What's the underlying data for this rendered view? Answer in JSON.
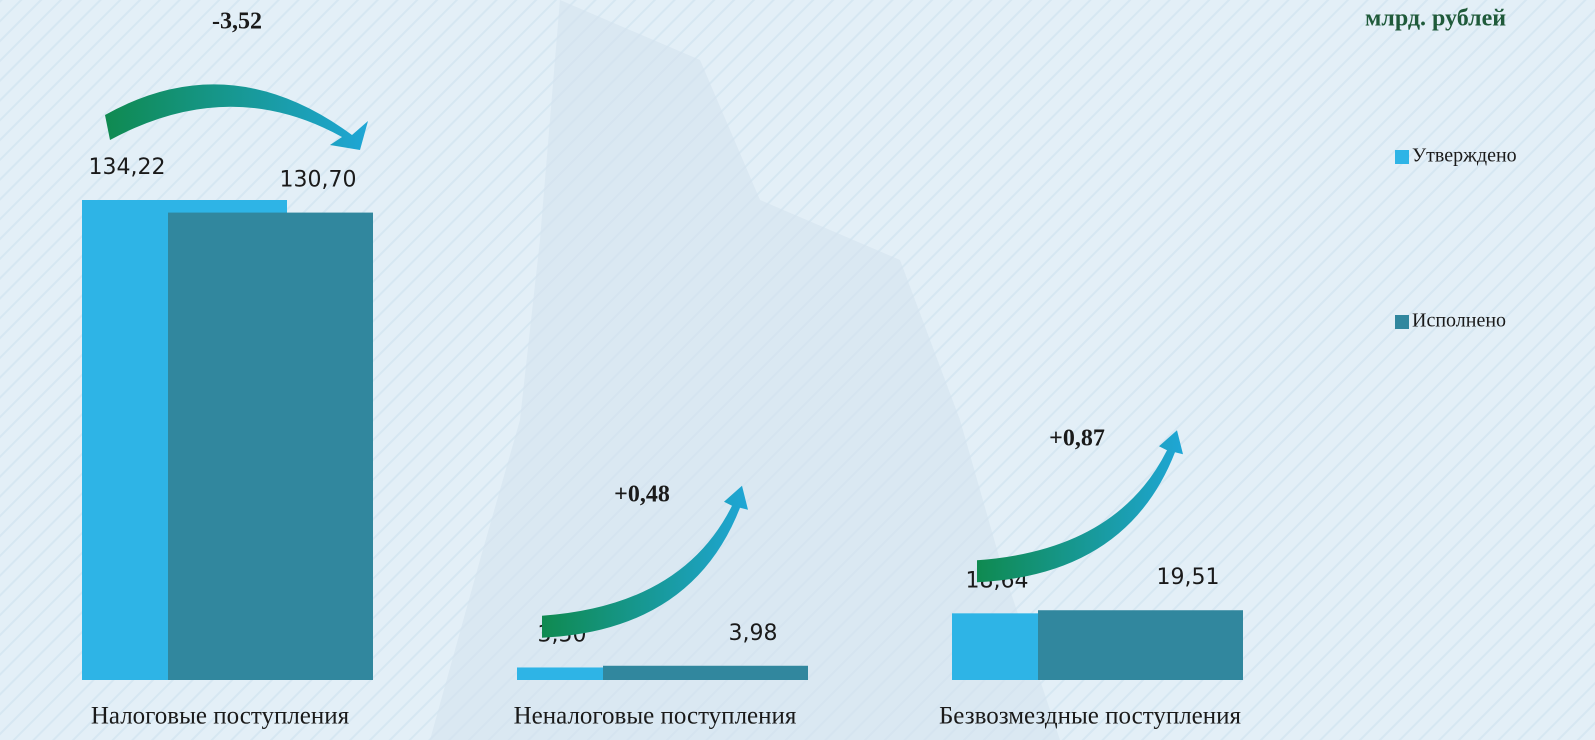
{
  "chart_data": {
    "type": "bar",
    "title": "млрд. рублей",
    "categories": [
      "Налоговые поступления",
      "Неналоговые поступления",
      "Безвозмездные поступления"
    ],
    "series": [
      {
        "name": "Утверждено",
        "color": "#2eb4e6",
        "values": [
          134.22,
          3.5,
          18.64
        ],
        "value_labels": [
          "134,22",
          "3,50",
          "18,64"
        ]
      },
      {
        "name": "Исполнено",
        "color": "#31879e",
        "values": [
          130.7,
          3.98,
          19.51
        ],
        "value_labels": [
          "130,70",
          "3,98",
          "19,51"
        ]
      }
    ],
    "annotations": [
      "-3,52",
      "+0,48",
      "+0,87"
    ]
  }
}
